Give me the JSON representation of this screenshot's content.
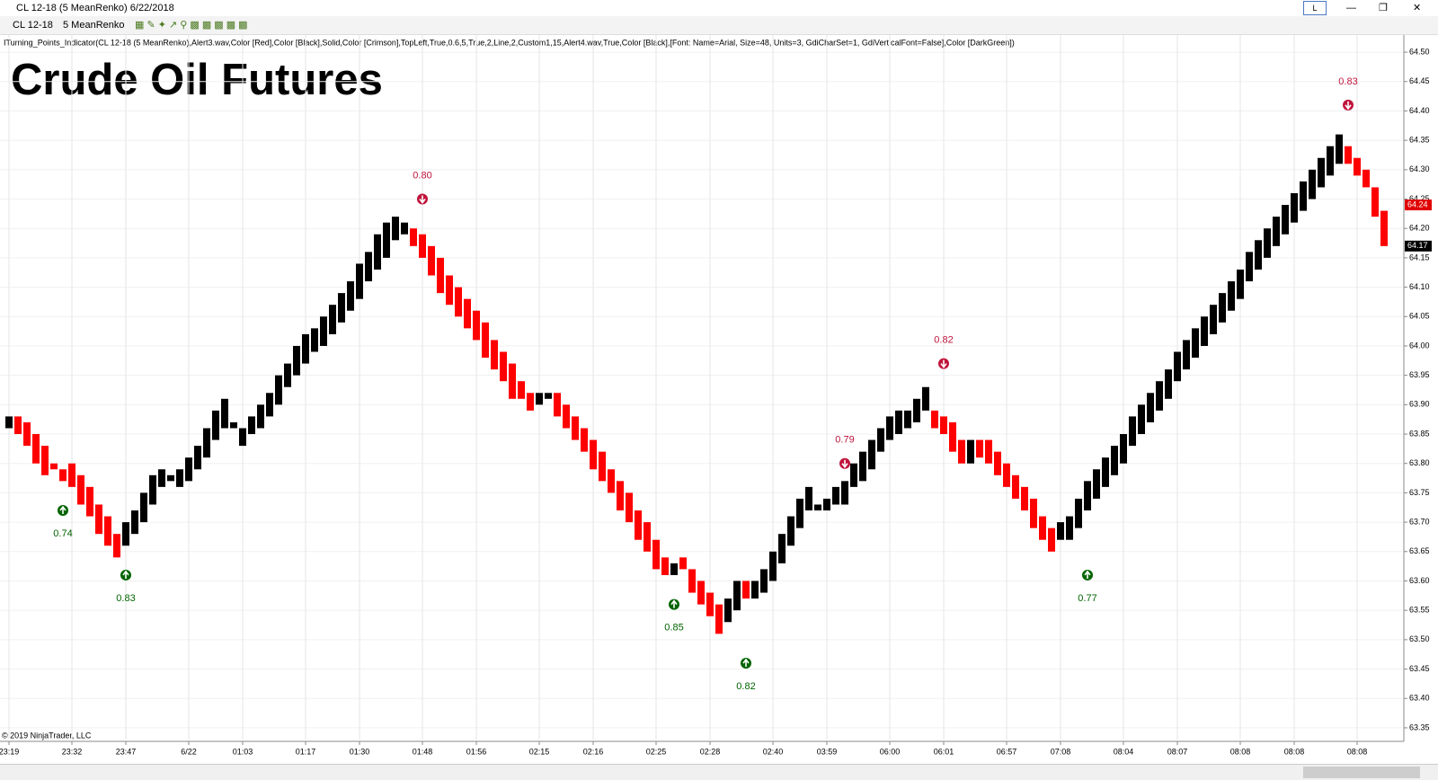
{
  "window": {
    "title": "CL 12-18 (5 MeanRenko)  6/22/2018",
    "button": "L"
  },
  "toolbar": {
    "instrument": "CL 12-18",
    "bar_type": "5 MeanRenko"
  },
  "indicator_line": "ITurning_Points_Indicator(CL 12-18 (5 MeanRenko),Alert3.wav,Color [Red],Color [Black],Solid,Color [Crimson],TopLeft,True,0.6,5,True,2,Line,2,Custom1,15,Alert4.wav,True,Color [Black],[Font: Name=Arial, Size=48, Units=3, GdiCharSet=1, GdiVerticalFont=False],Color [DarkGreen])",
  "copyright": "© 2019 NinjaTrader, LLC",
  "chart_data": {
    "type": "candlestick",
    "title": "Crude Oil Futures",
    "up_color": "#000000",
    "down_color": "#ff0000",
    "grid": true,
    "xlim": [
      -1,
      155
    ],
    "ylim": [
      63.33,
      64.52
    ],
    "xticks": [
      {
        "value": 0,
        "label": "23:19"
      },
      {
        "value": 7,
        "label": "23:32"
      },
      {
        "value": 13,
        "label": "23:47"
      },
      {
        "value": 20,
        "label": "6/22"
      },
      {
        "value": 26,
        "label": "01:03"
      },
      {
        "value": 33,
        "label": "01:17"
      },
      {
        "value": 39,
        "label": "01:30"
      },
      {
        "value": 46,
        "label": "01:48"
      },
      {
        "value": 52,
        "label": "01:56"
      },
      {
        "value": 59,
        "label": "02:15"
      },
      {
        "value": 65,
        "label": "02:16"
      },
      {
        "value": 72,
        "label": "02:25"
      },
      {
        "value": 78,
        "label": "02:28"
      },
      {
        "value": 85,
        "label": "02:40"
      },
      {
        "value": 91,
        "label": "03:59"
      },
      {
        "value": 98,
        "label": "06:00"
      },
      {
        "value": 104,
        "label": "06:01"
      },
      {
        "value": 111,
        "label": "06:57"
      },
      {
        "value": 117,
        "label": "07:08"
      },
      {
        "value": 124,
        "label": "08:04"
      },
      {
        "value": 130,
        "label": "08:07"
      },
      {
        "value": 137,
        "label": "08:08"
      },
      {
        "value": 143,
        "label": "08:08"
      },
      {
        "value": 150,
        "label": "08:08"
      }
    ],
    "yticks": [
      63.35,
      {
        "value": 63.4,
        "label": "63.40"
      },
      63.45,
      {
        "value": 63.5,
        "label": "63.50"
      },
      63.55,
      {
        "value": 63.6,
        "label": "63.60"
      },
      63.65,
      {
        "value": 63.7,
        "label": "63.70"
      },
      63.75,
      {
        "value": 63.8,
        "label": "63.80"
      },
      63.85,
      {
        "value": 63.9,
        "label": "63.90"
      },
      63.95,
      {
        "value": 64,
        "label": "64.00"
      },
      64.05,
      {
        "value": 64.1,
        "label": "64.10"
      },
      64.15,
      {
        "value": 64.2,
        "label": "64.20"
      },
      64.25,
      {
        "value": 64.3,
        "label": "64.30"
      },
      64.35,
      {
        "value": 64.4,
        "label": "64.40"
      },
      64.45,
      {
        "value": 64.5,
        "label": "64.50"
      }
    ],
    "open": [
      63.86,
      63.88,
      63.87,
      63.85,
      63.83,
      63.8,
      63.79,
      63.8,
      63.78,
      63.76,
      63.73,
      63.71,
      63.68,
      63.66,
      63.68,
      63.7,
      63.73,
      63.76,
      63.77,
      63.76,
      63.77,
      63.79,
      63.81,
      63.84,
      63.86,
      63.86,
      63.83,
      63.85,
      63.86,
      63.88,
      63.9,
      63.93,
      63.95,
      63.97,
      63.99,
      64.0,
      64.02,
      64.04,
      64.06,
      64.08,
      64.11,
      64.13,
      64.15,
      64.18,
      64.19,
      64.2,
      64.19,
      64.17,
      64.15,
      64.12,
      64.1,
      64.08,
      64.06,
      64.04,
      64.01,
      63.99,
      63.97,
      63.94,
      63.92,
      63.9,
      63.91,
      63.92,
      63.9,
      63.88,
      63.86,
      63.84,
      63.82,
      63.79,
      63.77,
      63.75,
      63.72,
      63.7,
      63.67,
      63.64,
      63.61,
      63.64,
      63.62,
      63.6,
      63.58,
      63.56,
      63.53,
      63.55,
      63.6,
      63.57,
      63.58,
      63.6,
      63.63,
      63.66,
      63.69,
      63.72,
      63.72,
      63.72,
      63.73,
      63.73,
      63.76,
      63.77,
      63.79,
      63.82,
      63.84,
      63.85,
      63.86,
      63.87,
      63.89,
      63.89,
      63.88,
      63.87,
      63.84,
      63.8,
      63.84,
      63.84,
      63.82,
      63.8,
      63.78,
      63.76,
      63.74,
      63.71,
      63.69,
      63.67,
      63.67,
      63.69,
      63.72,
      63.74,
      63.76,
      63.78,
      63.8,
      63.83,
      63.85,
      63.87,
      63.89,
      63.91,
      63.94,
      63.96,
      63.98,
      64.0,
      64.02,
      64.04,
      64.06,
      64.08,
      64.11,
      64.13,
      64.15,
      64.17,
      64.19,
      64.21,
      64.23,
      64.25,
      64.27,
      64.29,
      64.31,
      64.34,
      64.32,
      64.3,
      64.27,
      64.23
    ],
    "close": [
      63.88,
      63.85,
      63.83,
      63.8,
      63.78,
      63.79,
      63.77,
      63.76,
      63.73,
      63.71,
      63.68,
      63.66,
      63.64,
      63.7,
      63.72,
      63.75,
      63.78,
      63.79,
      63.78,
      63.79,
      63.81,
      63.83,
      63.86,
      63.89,
      63.91,
      63.87,
      63.86,
      63.88,
      63.9,
      63.92,
      63.95,
      63.97,
      64.0,
      64.02,
      64.03,
      64.05,
      64.07,
      64.09,
      64.11,
      64.14,
      64.16,
      64.19,
      64.21,
      64.22,
      64.21,
      64.17,
      64.15,
      64.12,
      64.09,
      64.07,
      64.05,
      64.03,
      64.01,
      63.98,
      63.96,
      63.94,
      63.91,
      63.91,
      63.89,
      63.92,
      63.92,
      63.88,
      63.86,
      63.84,
      63.82,
      63.79,
      63.77,
      63.75,
      63.72,
      63.7,
      63.67,
      63.65,
      63.62,
      63.61,
      63.63,
      63.62,
      63.58,
      63.56,
      63.54,
      63.51,
      63.57,
      63.6,
      63.57,
      63.6,
      63.62,
      63.65,
      63.68,
      63.71,
      63.74,
      63.76,
      63.73,
      63.74,
      63.76,
      63.77,
      63.8,
      63.82,
      63.84,
      63.86,
      63.88,
      63.89,
      63.89,
      63.91,
      63.93,
      63.86,
      63.85,
      63.82,
      63.8,
      63.84,
      63.81,
      63.8,
      63.78,
      63.76,
      63.74,
      63.72,
      63.69,
      63.67,
      63.65,
      63.7,
      63.71,
      63.74,
      63.77,
      63.79,
      63.81,
      63.83,
      63.85,
      63.88,
      63.9,
      63.92,
      63.94,
      63.96,
      63.99,
      64.01,
      64.03,
      64.05,
      64.07,
      64.09,
      64.11,
      64.13,
      64.16,
      64.18,
      64.2,
      64.22,
      64.24,
      64.26,
      64.28,
      64.3,
      64.32,
      64.34,
      64.36,
      64.31,
      64.29,
      64.27,
      64.22,
      64.17
    ],
    "annotations": [
      {
        "text": "0.74",
        "x": 6,
        "y": 63.72,
        "direction": "up",
        "color": "#006400"
      },
      {
        "text": "0.83",
        "x": 13,
        "y": 63.61,
        "direction": "up",
        "color": "#006400"
      },
      {
        "text": "0.80",
        "x": 46,
        "y": 64.25,
        "direction": "down",
        "color": "#c0143c"
      },
      {
        "text": "0.85",
        "x": 74,
        "y": 63.56,
        "direction": "up",
        "color": "#006400"
      },
      {
        "text": "0.82",
        "x": 82,
        "y": 63.46,
        "direction": "up",
        "color": "#006400"
      },
      {
        "text": "0.79",
        "x": 93,
        "y": 63.8,
        "direction": "down",
        "color": "#c0143c"
      },
      {
        "text": "0.82",
        "x": 104,
        "y": 63.97,
        "direction": "down",
        "color": "#c0143c"
      },
      {
        "text": "0.77",
        "x": 120,
        "y": 63.61,
        "direction": "up",
        "color": "#006400"
      },
      {
        "text": "0.83",
        "x": 149,
        "y": 64.41,
        "direction": "down",
        "color": "#c0143c"
      }
    ],
    "price_markers": [
      {
        "value": 64.24,
        "color": "#e00000"
      },
      {
        "value": 64.17,
        "color": "#000000"
      }
    ]
  }
}
